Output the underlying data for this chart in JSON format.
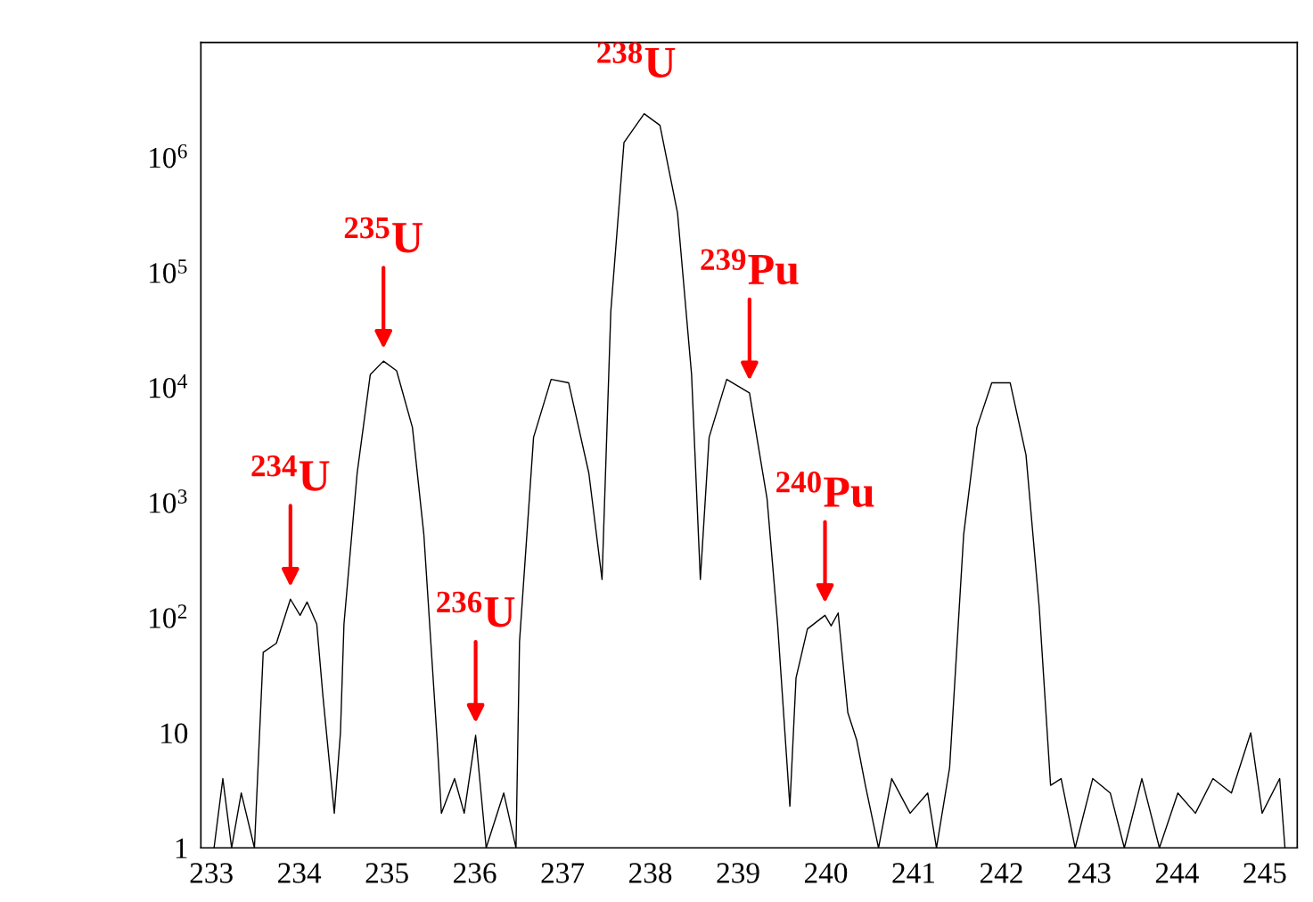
{
  "chart_data": {
    "type": "line",
    "log": "y",
    "grid": false,
    "xlim": [
      232.88,
      245.37
    ],
    "ylim": [
      1,
      10000000
    ],
    "xticks": [
      233,
      234,
      235,
      236,
      237,
      238,
      239,
      240,
      241,
      242,
      243,
      244,
      245
    ],
    "yticks": [
      1,
      10,
      {
        "value": 100,
        "label": "10$^{2}$"
      },
      {
        "value": 1000,
        "label": "10$^{3}$"
      },
      {
        "value": 10000,
        "label": "10$^{4}$"
      },
      {
        "value": 100000,
        "label": "10$^{5}$"
      },
      {
        "value": 1000000,
        "label": "10$^{6}$"
      }
    ],
    "series": [
      {
        "color": "#000000",
        "x": [
          233.03,
          233.13,
          233.23,
          233.34,
          233.49,
          233.59,
          233.74,
          233.9,
          234.01,
          234.09,
          234.2,
          234.27,
          234.4,
          234.47,
          234.51,
          234.66,
          234.81,
          234.96,
          235.11,
          235.29,
          235.42,
          235.57,
          235.62,
          235.77,
          235.88,
          236.01,
          236.13,
          236.33,
          236.47,
          236.51,
          236.67,
          236.87,
          237.07,
          237.3,
          237.45,
          237.55,
          237.7,
          237.93,
          238.11,
          238.31,
          238.47,
          238.57,
          238.67,
          238.87,
          239.13,
          239.33,
          239.45,
          239.59,
          239.66,
          239.79,
          239.99,
          240.06,
          240.14,
          240.25,
          240.35,
          240.45,
          240.6,
          240.75,
          240.96,
          241.16,
          241.26,
          241.41,
          241.57,
          241.72,
          241.89,
          242.1,
          242.28,
          242.43,
          242.56,
          242.68,
          242.84,
          243.04,
          243.24,
          243.4,
          243.6,
          243.8,
          244.01,
          244.21,
          244.41,
          244.62,
          244.84,
          244.97,
          245.17,
          245.23
        ],
        "values": [
          1,
          4,
          1,
          3,
          1,
          50,
          60,
          145,
          105,
          137,
          88,
          21,
          2,
          10,
          88,
          1800,
          13000,
          17000,
          14000,
          4500,
          530,
          9,
          2,
          4,
          2,
          9.5,
          1,
          3,
          1,
          62,
          3700,
          11800,
          11000,
          1800,
          215,
          46000,
          1350000,
          2400000,
          1900000,
          330000,
          13000,
          215,
          3700,
          11800,
          9000,
          1080,
          88,
          2.3,
          30,
          80,
          105,
          85,
          110,
          15,
          8.7,
          3.5,
          1,
          4,
          2,
          3,
          1,
          5,
          530,
          4500,
          11000,
          11000,
          2600,
          125,
          3.5,
          4,
          1,
          4,
          3,
          1,
          4,
          1,
          3,
          2,
          4,
          3,
          10,
          2,
          4,
          1
        ]
      }
    ],
    "annotations": [
      {
        "text": "$^{234}$U",
        "x": 233.9,
        "y": 145
      },
      {
        "text": "$^{235}$U",
        "x": 234.96,
        "y": 17000
      },
      {
        "text": "$^{236}$U",
        "x": 236.01,
        "y": 9.5
      },
      {
        "text": "$^{239}$Pu",
        "x": 239.13,
        "y": 9000
      },
      {
        "text": "$^{240}$Pu",
        "x": 239.99,
        "y": 105
      },
      "$^{238}$U"
    ]
  }
}
